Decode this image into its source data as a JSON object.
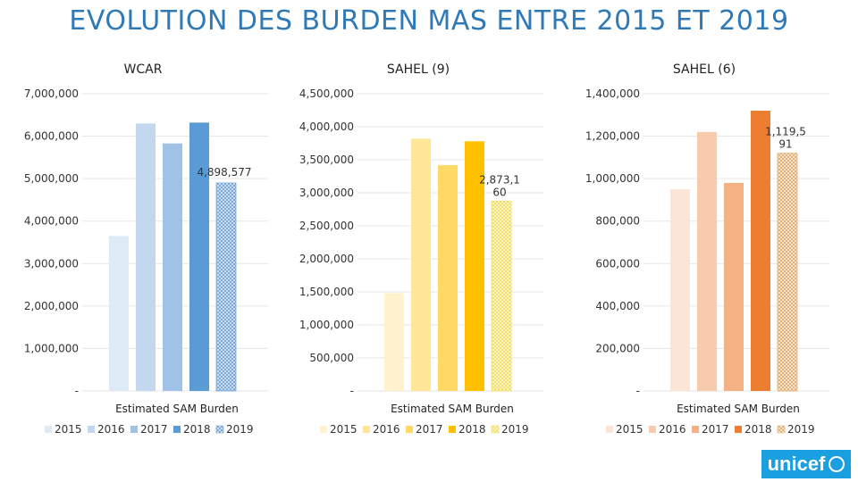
{
  "page": {
    "title": "EVOLUTION DES BURDEN MAS ENTRE 2015 ET 2019",
    "logo": "unicef"
  },
  "chart_data": [
    {
      "type": "bar",
      "title": "WCAR",
      "xlabel": "Estimated SAM Burden",
      "ylabel": "",
      "ylim": [
        0,
        7000000
      ],
      "yticks": [
        0,
        1000000,
        2000000,
        3000000,
        4000000,
        5000000,
        6000000,
        7000000
      ],
      "ytick_labels": [
        "-",
        "1,000,000",
        "2,000,000",
        "3,000,000",
        "4,000,000",
        "5,000,000",
        "6,000,000",
        "7,000,000"
      ],
      "series": [
        {
          "name": "2015",
          "value": 3650000,
          "color": "#deeaf6"
        },
        {
          "name": "2016",
          "value": 6300000,
          "color": "#c3d8ef"
        },
        {
          "name": "2017",
          "value": 5830000,
          "color": "#9fc2e6"
        },
        {
          "name": "2018",
          "value": 6320000,
          "color": "#5b9bd5"
        },
        {
          "name": "2019",
          "value": 4898577,
          "color": "#7aa7d6",
          "pattern": true,
          "label": "4,898,577"
        }
      ]
    },
    {
      "type": "bar",
      "title": "SAHEL (9)",
      "xlabel": "Estimated SAM Burden",
      "ylabel": "",
      "ylim": [
        0,
        4500000
      ],
      "yticks": [
        0,
        500000,
        1000000,
        1500000,
        2000000,
        2500000,
        3000000,
        3500000,
        4000000,
        4500000
      ],
      "ytick_labels": [
        "-",
        "500,000",
        "1,000,000",
        "1,500,000",
        "2,000,000",
        "2,500,000",
        "3,000,000",
        "3,500,000",
        "4,000,000",
        "4,500,000"
      ],
      "series": [
        {
          "name": "2015",
          "value": 1480000,
          "color": "#fff2cc"
        },
        {
          "name": "2016",
          "value": 3820000,
          "color": "#ffe699"
        },
        {
          "name": "2017",
          "value": 3420000,
          "color": "#ffd966"
        },
        {
          "name": "2018",
          "value": 3780000,
          "color": "#ffc000"
        },
        {
          "name": "2019",
          "value": 2873160,
          "color": "#f2e06a",
          "pattern": true,
          "label": "2,873,1\n60"
        }
      ]
    },
    {
      "type": "bar",
      "title": "SAHEL (6)",
      "xlabel": "Estimated SAM Burden",
      "ylabel": "",
      "ylim": [
        0,
        1400000
      ],
      "yticks": [
        0,
        200000,
        400000,
        600000,
        800000,
        1000000,
        1200000,
        1400000
      ],
      "ytick_labels": [
        "-",
        "200,000",
        "400,000",
        "600,000",
        "800,000",
        "1,000,000",
        "1,200,000",
        "1,400,000"
      ],
      "series": [
        {
          "name": "2015",
          "value": 950000,
          "color": "#fbe5d6"
        },
        {
          "name": "2016",
          "value": 1220000,
          "color": "#f8cbad"
        },
        {
          "name": "2017",
          "value": 980000,
          "color": "#f4b183"
        },
        {
          "name": "2018",
          "value": 1320000,
          "color": "#ed7d31"
        },
        {
          "name": "2019",
          "value": 1119591,
          "color": "#e3b277",
          "pattern": true,
          "label": "1,119,5\n91"
        }
      ]
    }
  ]
}
